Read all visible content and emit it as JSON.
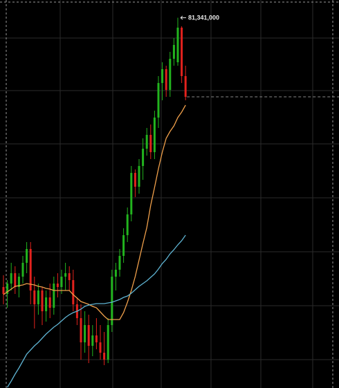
{
  "chart_data": {
    "type": "candlestick",
    "ylim": [
      27800000,
      83900000
    ],
    "up_color": "#22b41e",
    "down_color": "#e3221d",
    "open": [
      42400000,
      41400000,
      42900000,
      44400000,
      42400000,
      43900000,
      45900000,
      47900000,
      41900000,
      39900000,
      41900000,
      38900000,
      40900000,
      39400000,
      42900000,
      42400000,
      43900000,
      44400000,
      43400000,
      39900000,
      37900000,
      34400000,
      36900000,
      33900000,
      35400000,
      34400000,
      32900000,
      31900000,
      36900000,
      43900000,
      44900000,
      46900000,
      49900000,
      52900000,
      58900000,
      56900000,
      59900000,
      62400000,
      64400000,
      61900000,
      66900000,
      71900000,
      73900000,
      70900000,
      75400000,
      74900000,
      79900000,
      72900000
    ],
    "high": [
      44100000,
      43400000,
      45900000,
      45400000,
      44400000,
      46900000,
      48900000,
      48900000,
      43900000,
      42900000,
      42400000,
      41900000,
      42900000,
      43900000,
      44400000,
      44900000,
      45900000,
      45400000,
      44900000,
      40900000,
      39900000,
      38900000,
      38400000,
      36900000,
      37900000,
      36900000,
      35900000,
      37900000,
      44900000,
      45900000,
      47900000,
      50900000,
      53900000,
      59900000,
      59400000,
      60900000,
      63900000,
      65400000,
      65900000,
      67900000,
      72900000,
      74900000,
      74400000,
      76400000,
      78400000,
      81341000,
      80100000,
      74400000
    ],
    "low": [
      39900000,
      39400000,
      41900000,
      41400000,
      40900000,
      42900000,
      44400000,
      39900000,
      36400000,
      38400000,
      36900000,
      37400000,
      37900000,
      38400000,
      40900000,
      41400000,
      41900000,
      41900000,
      38900000,
      36900000,
      31900000,
      32900000,
      31400000,
      32400000,
      33400000,
      31900000,
      31100000,
      31400000,
      35900000,
      41900000,
      43900000,
      45900000,
      48900000,
      51900000,
      55400000,
      55900000,
      57900000,
      61400000,
      60900000,
      60900000,
      65400000,
      69400000,
      69900000,
      69900000,
      74400000,
      74400000,
      71900000,
      69400000
    ],
    "close": [
      41400000,
      42900000,
      44400000,
      42400000,
      43900000,
      45900000,
      47900000,
      41900000,
      39900000,
      41900000,
      38900000,
      40900000,
      39400000,
      42900000,
      42400000,
      43900000,
      44400000,
      43400000,
      39900000,
      37900000,
      34400000,
      36900000,
      33900000,
      35400000,
      34400000,
      32900000,
      31900000,
      36900000,
      43900000,
      44900000,
      46900000,
      49900000,
      52900000,
      58900000,
      56900000,
      59900000,
      62400000,
      64400000,
      61900000,
      66900000,
      71900000,
      73900000,
      70900000,
      75400000,
      77400000,
      79900000,
      72900000,
      69900000
    ],
    "series": [
      {
        "color": "#f0a04b",
        "values": [
          41300000,
          41700000,
          42100000,
          42500000,
          42600000,
          42700000,
          42900000,
          42800000,
          42700000,
          42500000,
          42400000,
          42200000,
          42100000,
          41900000,
          41900000,
          41900000,
          41900000,
          41900000,
          41300000,
          40800000,
          40300000,
          40100000,
          39900000,
          39600000,
          39400000,
          38800000,
          38200000,
          37700000,
          37700000,
          37700000,
          37700000,
          38700000,
          40200000,
          41900000,
          43900000,
          46300000,
          48700000,
          51000000,
          54200000,
          56800000,
          59500000,
          61900000,
          63900000,
          64900000,
          65700000,
          66900000,
          67700000,
          68700000
        ]
      },
      {
        "color": "#5fb4d3",
        "values": [
          null,
          27900000,
          28800000,
          29800000,
          30700000,
          31700000,
          32700000,
          33300000,
          33900000,
          34400000,
          35000000,
          35600000,
          36100000,
          36600000,
          37000000,
          37500000,
          38000000,
          38400000,
          38700000,
          38900000,
          39200000,
          39600000,
          39800000,
          39900000,
          40000000,
          40000000,
          40000000,
          40100000,
          40200000,
          40400000,
          40600000,
          40900000,
          41100000,
          41500000,
          42000000,
          42500000,
          42900000,
          43300000,
          43800000,
          44300000,
          45000000,
          45800000,
          46400000,
          47200000,
          47800000,
          48500000,
          49100000,
          49900000
        ]
      }
    ],
    "high_label": "81,341,000"
  }
}
